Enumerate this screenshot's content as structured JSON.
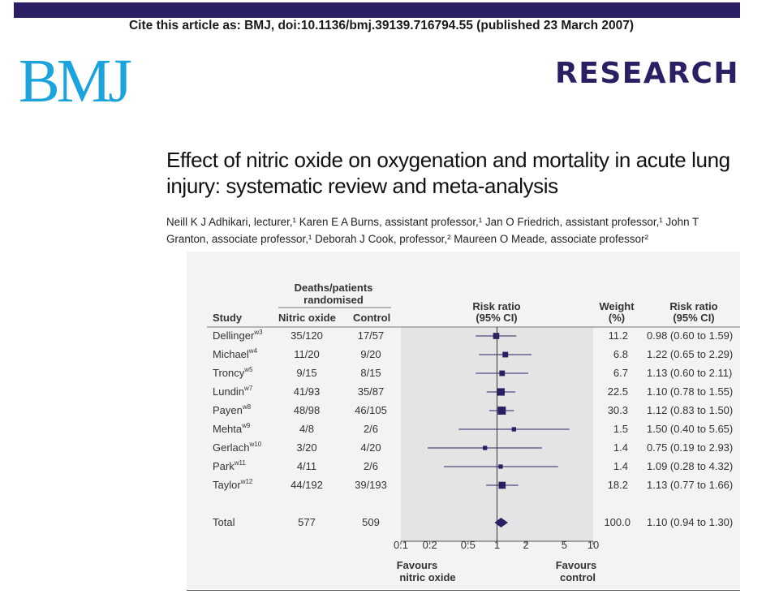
{
  "citation": "Cite this article as: BMJ, doi:10.1136/bmj.39139.716794.55 (published 23 March 2007)",
  "journal_logo": "BMJ",
  "section_label": "RESEARCH",
  "title": "Effect of nitric oxide on oxygenation and mortality in acute lung injury: systematic review and meta-analysis",
  "authors": {
    "line1": "Neill K J Adhikari, lecturer,¹ Karen E A Burns, assistant professor,¹ Jan O Friedrich, assistant professor,¹ John T",
    "line2": "Granton, associate professor,¹ Deborah J Cook, professor,² Maureen O Meade, associate professor²"
  },
  "colors": {
    "brand_blue": "#1aa3dc",
    "brand_navy": "#2b1e63",
    "plot_shade": "#e9e9e9",
    "marker": "#2b1e63"
  },
  "chart_data": {
    "type": "forest",
    "headers": {
      "study": "Study",
      "group_header_line1": "Deaths/patients",
      "group_header_line2": "randomised",
      "nitric_oxide": "Nitric oxide",
      "control": "Control",
      "rr_plot_line1": "Risk ratio",
      "rr_plot_line2": "(95% CI)",
      "weight_line1": "Weight",
      "weight_line2": "(%)",
      "rr_text_line1": "Risk ratio",
      "rr_text_line2": "(95% CI)"
    },
    "x_scale": "log",
    "x_ticks": [
      0.1,
      0.2,
      0.5,
      1,
      2,
      5,
      10
    ],
    "x_tick_labels": [
      "0.1",
      "0.2",
      "0.5",
      "1",
      "2",
      "5",
      "10"
    ],
    "xlim": [
      0.1,
      10
    ],
    "favours_left": [
      "Favours",
      "nitric oxide"
    ],
    "favours_right": [
      "Favours",
      "control"
    ],
    "studies": [
      {
        "name": "Dellinger",
        "ref": "w3",
        "no": "35/120",
        "ctrl": "17/57",
        "weight": "11.2",
        "rr_text": "0.98 (0.60 to 1.59)",
        "rr": 0.98,
        "lo": 0.6,
        "hi": 1.59
      },
      {
        "name": "Michael",
        "ref": "w4",
        "no": "11/20",
        "ctrl": "9/20",
        "weight": "6.8",
        "rr_text": "1.22 (0.65 to 2.29)",
        "rr": 1.22,
        "lo": 0.65,
        "hi": 2.29
      },
      {
        "name": "Troncy",
        "ref": "w5",
        "no": "9/15",
        "ctrl": "8/15",
        "weight": "6.7",
        "rr_text": "1.13 (0.60 to 2.11)",
        "rr": 1.13,
        "lo": 0.6,
        "hi": 2.11
      },
      {
        "name": "Lundin",
        "ref": "w7",
        "no": "41/93",
        "ctrl": "35/87",
        "weight": "22.5",
        "rr_text": "1.10 (0.78 to 1.55)",
        "rr": 1.1,
        "lo": 0.78,
        "hi": 1.55
      },
      {
        "name": "Payen",
        "ref": "w8",
        "no": "48/98",
        "ctrl": "46/105",
        "weight": "30.3",
        "rr_text": "1.12 (0.83 to 1.50)",
        "rr": 1.12,
        "lo": 0.83,
        "hi": 1.5
      },
      {
        "name": "Mehta",
        "ref": "w9",
        "no": "4/8",
        "ctrl": "2/6",
        "weight": "1.5",
        "rr_text": "1.50 (0.40 to 5.65)",
        "rr": 1.5,
        "lo": 0.4,
        "hi": 5.65
      },
      {
        "name": "Gerlach",
        "ref": "w10",
        "no": "3/20",
        "ctrl": "4/20",
        "weight": "1.4",
        "rr_text": "0.75 (0.19 to 2.93)",
        "rr": 0.75,
        "lo": 0.19,
        "hi": 2.93
      },
      {
        "name": "Park",
        "ref": "w11",
        "no": "4/11",
        "ctrl": "2/6",
        "weight": "1.4",
        "rr_text": "1.09 (0.28 to 4.32)",
        "rr": 1.09,
        "lo": 0.28,
        "hi": 4.32
      },
      {
        "name": "Taylor",
        "ref": "w12",
        "no": "44/192",
        "ctrl": "39/193",
        "weight": "18.2",
        "rr_text": "1.13 (0.77 to 1.66)",
        "rr": 1.13,
        "lo": 0.77,
        "hi": 1.66
      }
    ],
    "total": {
      "name": "Total",
      "no": "577",
      "ctrl": "509",
      "weight": "100.0",
      "rr_text": "1.10 (0.94 to 1.30)",
      "rr": 1.1,
      "lo": 0.94,
      "hi": 1.3
    }
  }
}
